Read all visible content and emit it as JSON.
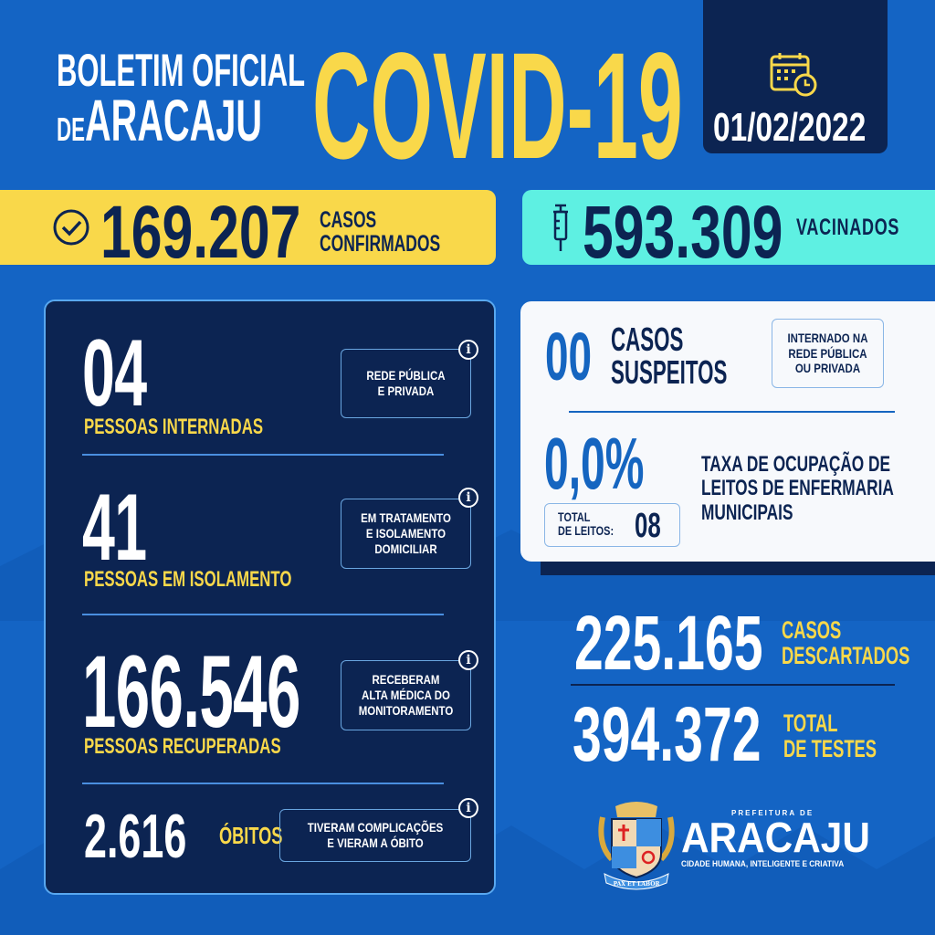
{
  "header": {
    "line1": "BOLETIM OFICIAL",
    "line2_prefix": "DE",
    "line2_main": "ARACAJU",
    "title": "COVID-19",
    "date": "01/02/2022",
    "date_icon": "calendar-clock-icon"
  },
  "confirmed": {
    "icon": "check-circle-icon",
    "value": "169.207",
    "label1": "CASOS",
    "label2": "CONFIRMADOS"
  },
  "vaccinated": {
    "icon": "syringe-icon",
    "value": "593.309",
    "label": "VACINADOS"
  },
  "stats": [
    {
      "value": "04",
      "label": "PESSOAS INTERNADAS",
      "info": [
        "REDE PÚBLICA",
        "E PRIVADA"
      ]
    },
    {
      "value": "41",
      "label": "PESSOAS EM ISOLAMENTO",
      "info": [
        "EM TRATAMENTO",
        "E ISOLAMENTO",
        "DOMICILIAR"
      ]
    },
    {
      "value": "166.546",
      "label": "PESSOAS RECUPERADAS",
      "info": [
        "RECEBERAM",
        "ALTA MÉDICA DO",
        "MONITORAMENTO"
      ]
    },
    {
      "value": "2.616",
      "label": "ÓBITOS",
      "info": [
        "TIVERAM COMPLICAÇÕES",
        "E VIERAM A ÓBITO"
      ]
    }
  ],
  "info_icon": "i",
  "suspects": {
    "value": "00",
    "label1": "CASOS",
    "label2": "SUSPEITOS",
    "info": [
      "INTERNADO NA",
      "REDE PÚBLICA",
      "OU PRIVADA"
    ]
  },
  "occupancy": {
    "value": "0,0%",
    "total_label1": "TOTAL",
    "total_label2": "DE LEITOS:",
    "total_value": "08",
    "desc": [
      "TAXA DE OCUPAÇÃO DE",
      "LEITOS DE ENFERMARIA",
      "MUNICIPAIS"
    ]
  },
  "discarded": {
    "value": "225.165",
    "label1": "CASOS",
    "label2": "DESCARTADOS"
  },
  "tests": {
    "value": "394.372",
    "label1": "TOTAL",
    "label2": "DE TESTES"
  },
  "logo": {
    "pre": "PREFEITURA DE",
    "name": "ARACAJU",
    "tagline": "CIDADE HUMANA, INTELIGENTE E CRIATIVA",
    "motto": "PAX ET LABOR"
  },
  "colors": {
    "background": "#1464c4",
    "navy": "#0c2452",
    "yellow": "#f9d84a",
    "cyan": "#5ef0e2"
  }
}
